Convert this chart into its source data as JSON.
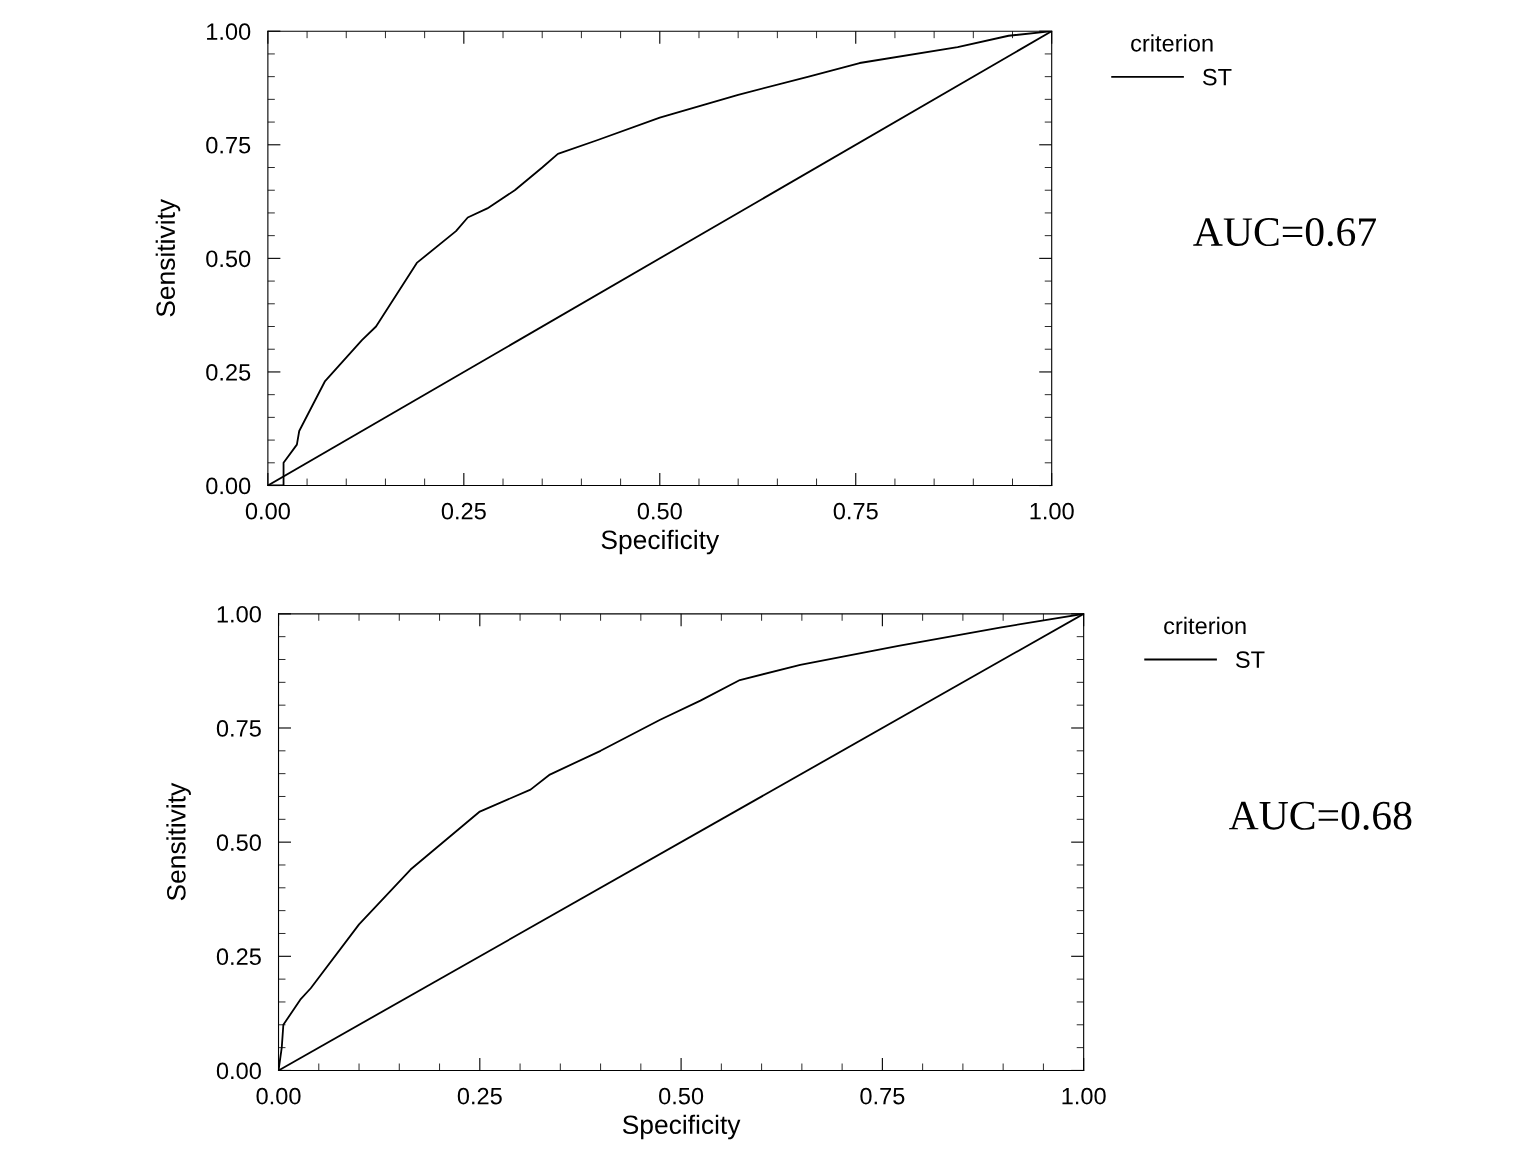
{
  "chart_data": [
    {
      "type": "line",
      "xlabel": "Specificity",
      "ylabel": "Sensitivity",
      "legend_title": "criterion",
      "legend": "top right",
      "grid": false,
      "marker": "none",
      "line_style": "solid",
      "xlim": [
        0,
        1
      ],
      "ylim": [
        0,
        1
      ],
      "xticks": [
        {
          "value": 0,
          "label": "0.00"
        },
        {
          "value": 0.25,
          "label": "0.25"
        },
        {
          "value": 0.5,
          "label": "0.50"
        },
        {
          "value": 0.75,
          "label": "0.75"
        },
        {
          "value": 1,
          "label": "1.00"
        }
      ],
      "yticks": [
        {
          "value": 0,
          "label": "0.00"
        },
        {
          "value": 0.25,
          "label": "0.25"
        },
        {
          "value": 0.5,
          "label": "0.50"
        },
        {
          "value": 0.75,
          "label": "0.75"
        },
        {
          "value": 1,
          "label": "1.00"
        }
      ],
      "series": [
        {
          "name": "ST",
          "color": "#000000",
          "x": [
            0,
            0.02,
            0.02,
            0.037,
            0.04,
            0.073,
            0.12,
            0.138,
            0.19,
            0.24,
            0.255,
            0.28,
            0.315,
            0.35,
            0.37,
            0.42,
            0.5,
            0.6,
            0.69,
            0.755,
            0.88,
            0.945,
            1
          ],
          "values": [
            0,
            0,
            0.05,
            0.09,
            0.12,
            0.23,
            0.32,
            0.35,
            0.49,
            0.56,
            0.59,
            0.61,
            0.65,
            0.7,
            0.73,
            0.76,
            0.81,
            0.86,
            0.9,
            0.93,
            0.965,
            0.99,
            1
          ]
        },
        {
          "color": "#000000",
          "x": [
            0,
            1
          ],
          "values": [
            0,
            1
          ]
        }
      ],
      "annotations": [
        "AUC=0.67"
      ]
    },
    {
      "type": "line",
      "xlabel": "Specificity",
      "ylabel": "Sensitivity",
      "legend_title": "criterion",
      "legend": "top right",
      "grid": false,
      "marker": "none",
      "line_style": "solid",
      "xlim": [
        0,
        1
      ],
      "ylim": [
        0,
        1
      ],
      "xticks": [
        {
          "value": 0,
          "label": "0.00"
        },
        {
          "value": 0.25,
          "label": "0.25"
        },
        {
          "value": 0.5,
          "label": "0.50"
        },
        {
          "value": 0.75,
          "label": "0.75"
        },
        {
          "value": 1,
          "label": "1.00"
        }
      ],
      "yticks": [
        {
          "value": 0,
          "label": "0.00"
        },
        {
          "value": 0.25,
          "label": "0.25"
        },
        {
          "value": 0.5,
          "label": "0.50"
        },
        {
          "value": 0.75,
          "label": "0.75"
        },
        {
          "value": 1,
          "label": "1.00"
        }
      ],
      "series": [
        {
          "name": "ST",
          "color": "#000000",
          "x": [
            0,
            0.004,
            0.006,
            0.027,
            0.04,
            0.1,
            0.164,
            0.25,
            0.313,
            0.337,
            0.4,
            0.474,
            0.524,
            0.573,
            0.648,
            0.77,
            0.896,
            1
          ],
          "values": [
            0,
            0.05,
            0.1,
            0.155,
            0.18,
            0.32,
            0.44,
            0.567,
            0.615,
            0.648,
            0.7,
            0.768,
            0.81,
            0.855,
            0.888,
            0.93,
            0.97,
            1
          ]
        },
        {
          "color": "#000000",
          "x": [
            0,
            1
          ],
          "values": [
            0,
            1
          ]
        }
      ],
      "annotations": [
        "AUC=0.68"
      ]
    }
  ]
}
